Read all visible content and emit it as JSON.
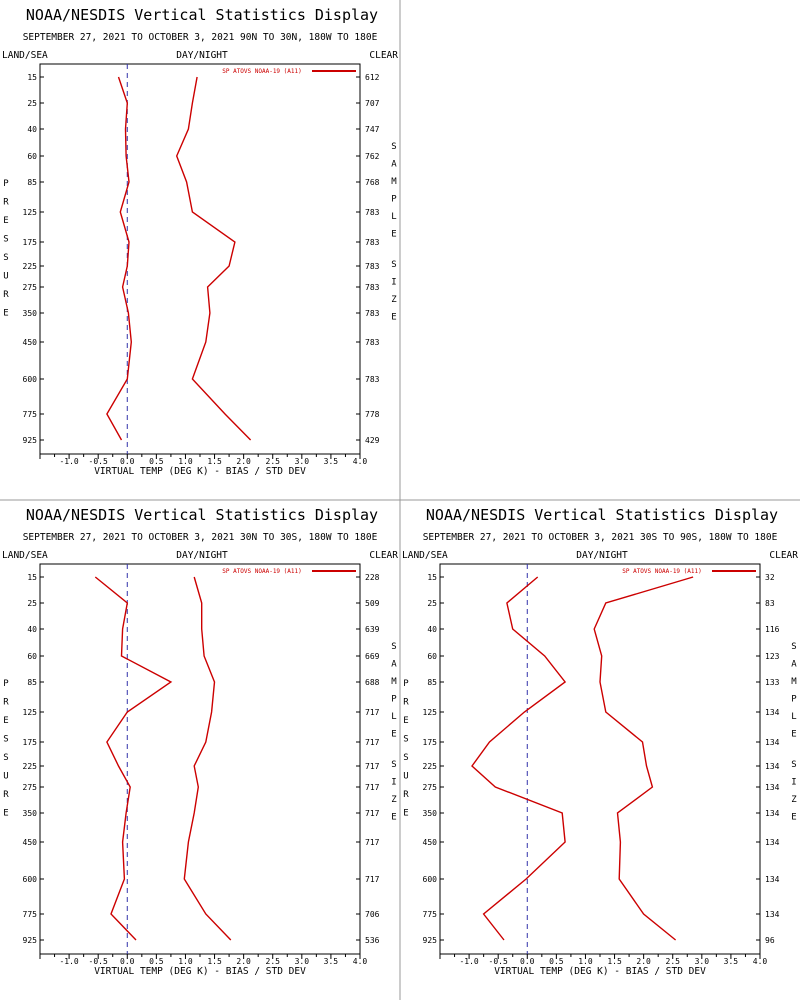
{
  "page": {
    "divider_color": "#999999",
    "series_color": "#cc0000"
  },
  "chart_data": [
    {
      "type": "line",
      "title": "NOAA/NESDIS Vertical Statistics Display",
      "subtitle": "SEPTEMBER 27, 2021 TO OCTOBER 3, 2021 90N TO 30N, 180W TO 180E",
      "corner_left": "LAND/SEA",
      "corner_center": "DAY/NIGHT",
      "corner_right": "CLEAR",
      "ylabel": "PRESSURE",
      "ylabel_right": "SAMPLE SIZE",
      "xlabel": "VIRTUAL TEMP (DEG K) - BIAS / STD DEV",
      "legend": "SP ATOVS NOAA-19 (A11)",
      "xlim": [
        -1.5,
        4.0
      ],
      "xticks": [
        "-1.0",
        "-0.5",
        "0.0",
        "0.5",
        "1.0",
        "1.5",
        "2.0",
        "2.5",
        "3.0",
        "3.5",
        "4.0"
      ],
      "pressure_levels": [
        "15",
        "25",
        "40",
        "60",
        "85",
        "125",
        "175",
        "225",
        "275",
        "350",
        "450",
        "600",
        "775",
        "925"
      ],
      "sample_size": [
        "612",
        "707",
        "747",
        "762",
        "768",
        "783",
        "783",
        "783",
        "783",
        "783",
        "783",
        "783",
        "778",
        "429"
      ],
      "series": [
        {
          "kind": "bias",
          "values": [
            -0.15,
            0.0,
            -0.03,
            -0.02,
            0.03,
            -0.12,
            0.03,
            0.0,
            -0.08,
            0.02,
            0.07,
            0.0,
            -0.35,
            -0.1
          ]
        },
        {
          "kind": "std_dev",
          "values": [
            1.2,
            1.12,
            1.05,
            0.85,
            1.02,
            1.12,
            1.85,
            1.75,
            1.38,
            1.42,
            1.35,
            1.12,
            1.68,
            2.12
          ]
        }
      ]
    },
    {
      "type": "line",
      "title": "NOAA/NESDIS Vertical Statistics Display",
      "subtitle": "SEPTEMBER 27, 2021 TO OCTOBER 3, 2021 30N TO 30S, 180W TO 180E",
      "corner_left": "LAND/SEA",
      "corner_center": "DAY/NIGHT",
      "corner_right": "CLEAR",
      "ylabel": "PRESSURE",
      "ylabel_right": "SAMPLE SIZE",
      "xlabel": "VIRTUAL TEMP (DEG K) - BIAS / STD DEV",
      "legend": "SP ATOVS NOAA-19 (A11)",
      "xlim": [
        -1.5,
        4.0
      ],
      "xticks": [
        "-1.0",
        "-0.5",
        "0.0",
        "0.5",
        "1.0",
        "1.5",
        "2.0",
        "2.5",
        "3.0",
        "3.5",
        "4.0"
      ],
      "pressure_levels": [
        "15",
        "25",
        "40",
        "60",
        "85",
        "125",
        "175",
        "225",
        "275",
        "350",
        "450",
        "600",
        "775",
        "925"
      ],
      "sample_size": [
        "228",
        "509",
        "639",
        "669",
        "688",
        "717",
        "717",
        "717",
        "717",
        "717",
        "717",
        "717",
        "706",
        "536"
      ],
      "series": [
        {
          "kind": "bias",
          "values": [
            -0.55,
            0.0,
            -0.08,
            -0.1,
            0.75,
            0.0,
            -0.35,
            -0.15,
            0.05,
            -0.02,
            -0.08,
            -0.05,
            -0.28,
            0.15
          ]
        },
        {
          "kind": "std_dev",
          "values": [
            1.15,
            1.28,
            1.28,
            1.32,
            1.5,
            1.45,
            1.35,
            1.15,
            1.22,
            1.15,
            1.05,
            0.98,
            1.35,
            1.78
          ]
        }
      ]
    },
    {
      "type": "line",
      "title": "NOAA/NESDIS Vertical Statistics Display",
      "subtitle": "SEPTEMBER 27, 2021 TO OCTOBER 3, 2021 30S TO 90S, 180W TO 180E",
      "corner_left": "LAND/SEA",
      "corner_center": "DAY/NIGHT",
      "corner_right": "CLEAR",
      "ylabel": "PRESSURE",
      "ylabel_right": "SAMPLE SIZE",
      "xlabel": "VIRTUAL TEMP (DEG K) - BIAS / STD DEV",
      "legend": "SP ATOVS NOAA-19 (A11)",
      "xlim": [
        -1.5,
        4.0
      ],
      "xticks": [
        "-1.0",
        "-0.5",
        "0.0",
        "0.5",
        "1.0",
        "1.5",
        "2.0",
        "2.5",
        "3.0",
        "3.5",
        "4.0"
      ],
      "pressure_levels": [
        "15",
        "25",
        "40",
        "60",
        "85",
        "125",
        "175",
        "225",
        "275",
        "350",
        "450",
        "600",
        "775",
        "925"
      ],
      "sample_size": [
        "32",
        "83",
        "116",
        "123",
        "133",
        "134",
        "134",
        "134",
        "134",
        "134",
        "134",
        "134",
        "134",
        "96"
      ],
      "series": [
        {
          "kind": "bias",
          "values": [
            0.18,
            -0.35,
            -0.25,
            0.3,
            0.65,
            -0.05,
            -0.65,
            -0.95,
            -0.55,
            0.6,
            0.65,
            -0.02,
            -0.75,
            -0.4
          ]
        },
        {
          "kind": "std_dev",
          "values": [
            2.85,
            1.35,
            1.15,
            1.28,
            1.25,
            1.35,
            1.98,
            2.05,
            2.15,
            1.55,
            1.6,
            1.58,
            2.0,
            2.55
          ]
        }
      ]
    }
  ]
}
